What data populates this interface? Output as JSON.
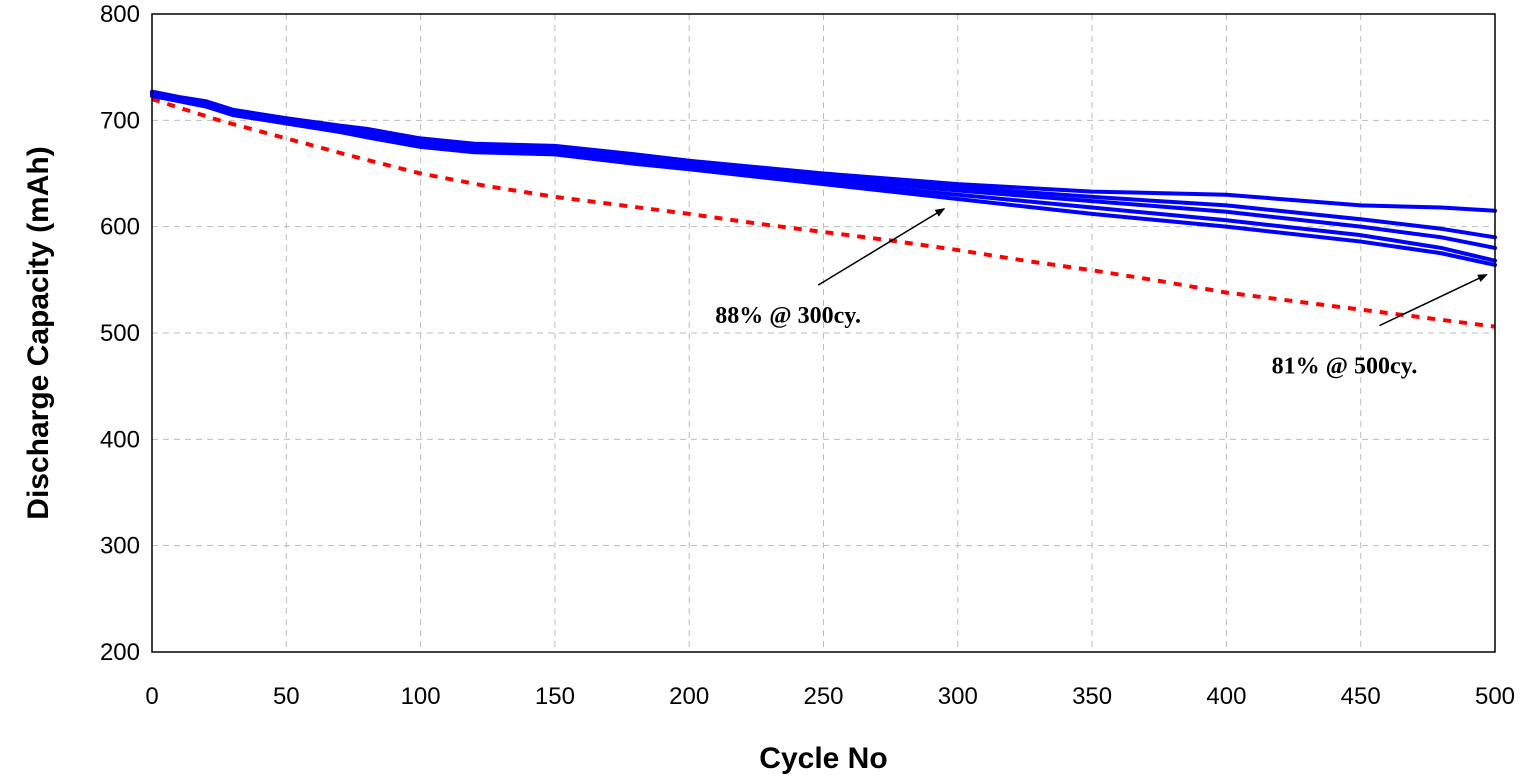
{
  "chart_data": {
    "type": "line",
    "title": "",
    "xlabel": "Cycle No",
    "ylabel": "Discharge Capacity (mAh)",
    "xlim": [
      0,
      500
    ],
    "ylim": [
      200,
      800
    ],
    "xticks": [
      0,
      50,
      100,
      150,
      200,
      250,
      300,
      350,
      400,
      450,
      500
    ],
    "yticks": [
      200,
      300,
      400,
      500,
      600,
      700,
      800
    ],
    "grid": true,
    "legend": "none",
    "series_color": "#0000FF",
    "reference_color": "#FF0000",
    "series": [
      {
        "x": [
          0,
          10,
          20,
          30,
          50,
          70,
          80,
          100,
          120,
          150,
          180,
          200,
          250,
          300,
          350,
          400,
          450,
          480,
          500
        ],
        "y": [
          727,
          722,
          718,
          710,
          702,
          695,
          692,
          683,
          678,
          676,
          668,
          662,
          650,
          640,
          633,
          630,
          620,
          618,
          615
        ]
      },
      {
        "x": [
          0,
          10,
          20,
          30,
          50,
          70,
          80,
          100,
          120,
          150,
          180,
          200,
          250,
          300,
          350,
          400,
          450,
          480,
          500
        ],
        "y": [
          726,
          721,
          716,
          708,
          700,
          693,
          690,
          681,
          676,
          674,
          665,
          660,
          648,
          637,
          628,
          620,
          607,
          598,
          590
        ]
      },
      {
        "x": [
          0,
          10,
          20,
          30,
          50,
          70,
          80,
          100,
          120,
          150,
          180,
          200,
          250,
          300,
          350,
          400,
          450,
          480,
          500
        ],
        "y": [
          725,
          720,
          715,
          707,
          699,
          692,
          688,
          679,
          674,
          672,
          663,
          658,
          645,
          634,
          624,
          614,
          600,
          590,
          580
        ]
      },
      {
        "x": [
          0,
          10,
          20,
          30,
          50,
          70,
          80,
          100,
          120,
          150,
          180,
          200,
          250,
          300,
          350,
          400,
          450,
          480,
          500
        ],
        "y": [
          724,
          719,
          714,
          706,
          698,
          690,
          686,
          677,
          672,
          670,
          661,
          656,
          642,
          630,
          618,
          606,
          592,
          580,
          568
        ]
      },
      {
        "x": [
          0,
          10,
          20,
          30,
          50,
          70,
          80,
          100,
          120,
          150,
          180,
          200,
          250,
          300,
          350,
          400,
          450,
          480,
          500
        ],
        "y": [
          723,
          718,
          713,
          705,
          697,
          689,
          684,
          675,
          670,
          668,
          659,
          654,
          640,
          626,
          612,
          600,
          586,
          575,
          564
        ]
      }
    ],
    "reference": {
      "x": [
        0,
        25,
        50,
        75,
        100,
        125,
        150,
        175,
        200,
        225,
        250,
        275,
        300,
        325,
        350,
        375,
        400,
        425,
        450,
        475,
        500
      ],
      "y": [
        720,
        700,
        683,
        666,
        650,
        638,
        628,
        620,
        612,
        603,
        595,
        587,
        578,
        568,
        559,
        549,
        538,
        530,
        522,
        514,
        506
      ]
    },
    "annotations": [
      {
        "text": "88% @ 300cy.",
        "arrow_from": [
          248,
          545
        ],
        "arrow_to": [
          295,
          617
        ]
      },
      {
        "text": "81% @ 500cy.",
        "arrow_from": [
          457,
          507
        ],
        "arrow_to": [
          497,
          555
        ]
      }
    ]
  }
}
